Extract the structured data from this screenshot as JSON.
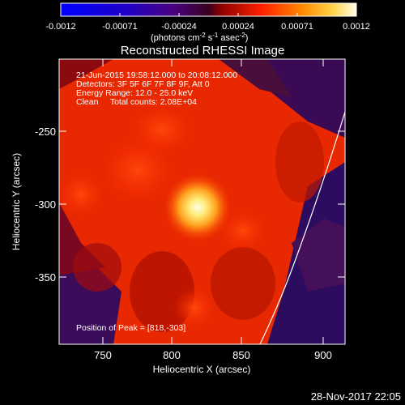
{
  "colorbar": {
    "tick_labels": [
      "-0.0012",
      "-0.00071",
      "-0.00024",
      "0.00024",
      "0.00071",
      "0.0012"
    ],
    "unit_text": "(photons cm",
    "unit_sup1": "-2",
    "unit_mid": " s",
    "unit_sup2": "-1",
    "unit_end": " asec",
    "unit_sup3": "-2",
    "unit_close": ")"
  },
  "plot": {
    "title": "Reconstructed RHESSI Image",
    "xlabel": "Heliocentric X (arcsec)",
    "ylabel": "Heliocentric Y (arcsec)",
    "x_ticks": [
      "750",
      "800",
      "850",
      "900"
    ],
    "y_ticks": [
      "-250",
      "-300",
      "-350"
    ],
    "info_lines": [
      "21-Jun-2015 19:58:12.000 to 20:08:12.000",
      "Detectors: 3F 5F 6F 7F 8F 9F, Att 0",
      "Energy Range: 12.0 - 25.0 keV",
      "Clean     Total counts: 2.08E+04"
    ],
    "peak_label": "Position of Peak = [818,-303]"
  },
  "footer": {
    "timestamp": "28-Nov-2017 22:05"
  },
  "colors": {
    "background": "#000000",
    "foreground": "#ffffff"
  }
}
